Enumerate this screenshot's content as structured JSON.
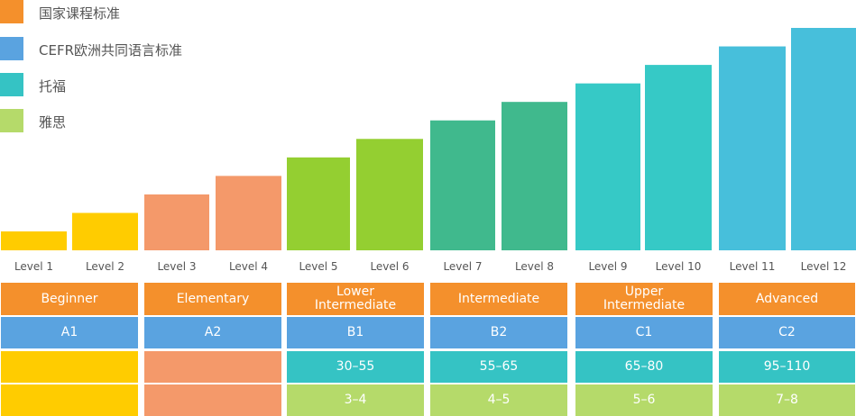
{
  "legend": {
    "items": [
      {
        "label": "国家课程标准",
        "color": "#F4902C"
      },
      {
        "label": "CEFR欧洲共同语言标准",
        "color": "#5AA3E0"
      },
      {
        "label": "托福",
        "color": "#35C3C4"
      },
      {
        "label": "雅思",
        "color": "#B5DA6A"
      }
    ]
  },
  "chart_data": {
    "type": "bar",
    "categories": [
      "Level 1",
      "Level 2",
      "Level 3",
      "Level 4",
      "Level 5",
      "Level 6",
      "Level 7",
      "Level 8",
      "Level 9",
      "Level 10",
      "Level 11",
      "Level 12"
    ],
    "values": [
      1,
      2,
      3,
      4,
      5,
      6,
      7,
      8,
      9,
      10,
      11,
      12
    ],
    "bar_colors": [
      "#FFCC00",
      "#FFCC00",
      "#F4996A",
      "#F4996A",
      "#94CF31",
      "#94CF31",
      "#40B98D",
      "#40B98D",
      "#36C9C6",
      "#36C9C6",
      "#47BFDB",
      "#47BFDB"
    ]
  },
  "rows": {
    "curriculum": {
      "color": "#F4902C",
      "cells": [
        {
          "label": "Beginner"
        },
        {
          "label": "Elementary"
        },
        {
          "label": "Lower Intermediate"
        },
        {
          "label": "Intermediate"
        },
        {
          "label": "Upper Intermediate"
        },
        {
          "label": "Advanced"
        }
      ]
    },
    "cefr": {
      "color": "#5AA3E0",
      "cells": [
        {
          "label": "A1"
        },
        {
          "label": "A2"
        },
        {
          "label": "B1"
        },
        {
          "label": "B2"
        },
        {
          "label": "C1"
        },
        {
          "label": "C2"
        }
      ]
    },
    "toefl": {
      "cells": [
        {
          "label": "",
          "color": "#FFCC00"
        },
        {
          "label": "",
          "color": "#F4996A"
        },
        {
          "label": "30–55",
          "color": "#35C3C4"
        },
        {
          "label": "55–65",
          "color": "#35C3C4"
        },
        {
          "label": "65–80",
          "color": "#35C3C4"
        },
        {
          "label": "95–110",
          "color": "#35C3C4"
        }
      ]
    },
    "ielts": {
      "cells": [
        {
          "label": "",
          "color": "#FFCC00"
        },
        {
          "label": "",
          "color": "#F4996A"
        },
        {
          "label": "3–4",
          "color": "#B5DA6A"
        },
        {
          "label": "4–5",
          "color": "#B5DA6A"
        },
        {
          "label": "5–6",
          "color": "#B5DA6A"
        },
        {
          "label": "7–8",
          "color": "#B5DA6A"
        }
      ]
    }
  }
}
